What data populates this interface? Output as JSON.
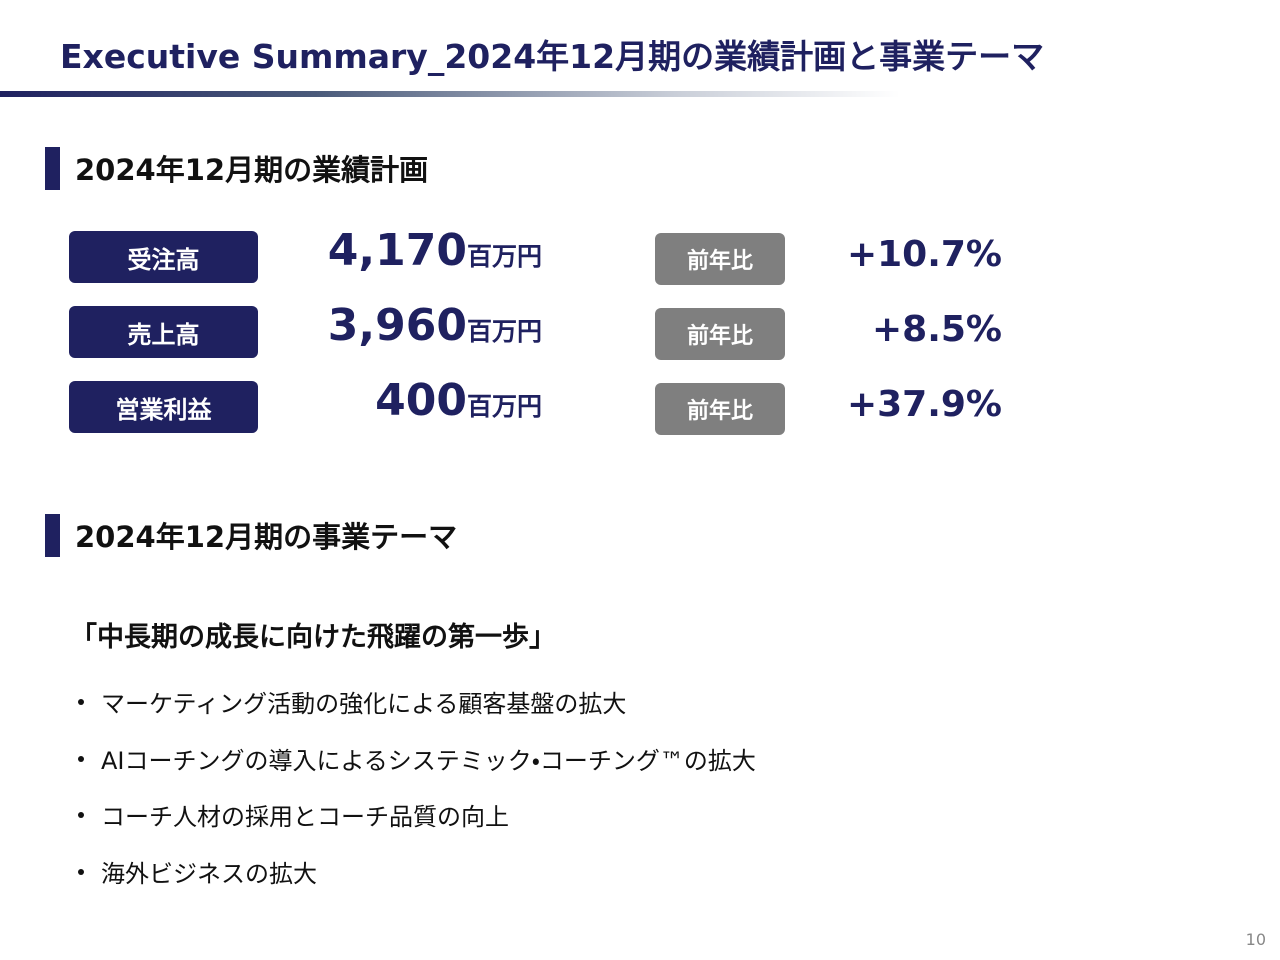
{
  "title": "Executive Summary_2024年12月期の業績計画と事業テーマ",
  "plan": {
    "heading": "2024年12月期の業績計画",
    "rows": [
      {
        "label": "受注高",
        "value": "4,170",
        "unit": "百万円",
        "compare_label": "前年比",
        "change": "+10.7%"
      },
      {
        "label": "売上高",
        "value": "3,960",
        "unit": "百万円",
        "compare_label": "前年比",
        "change": "+8.5%"
      },
      {
        "label": "営業利益",
        "value": "400",
        "unit": "百万円",
        "compare_label": "前年比",
        "change": "+37.9%"
      }
    ]
  },
  "themes": {
    "heading": "2024年12月期の事業テーマ",
    "slogan": "「中長期の成長に向けた飛躍の第一歩」",
    "bullets": [
      "マーケティング活動の強化による顧客基盤の拡大",
      "AIコーチングの導入によるシステミック・コーチング™の拡大",
      "コーチ人材の採用とコーチ品質の向上",
      "海外ビジネスの拡大"
    ]
  },
  "page_number": "10"
}
